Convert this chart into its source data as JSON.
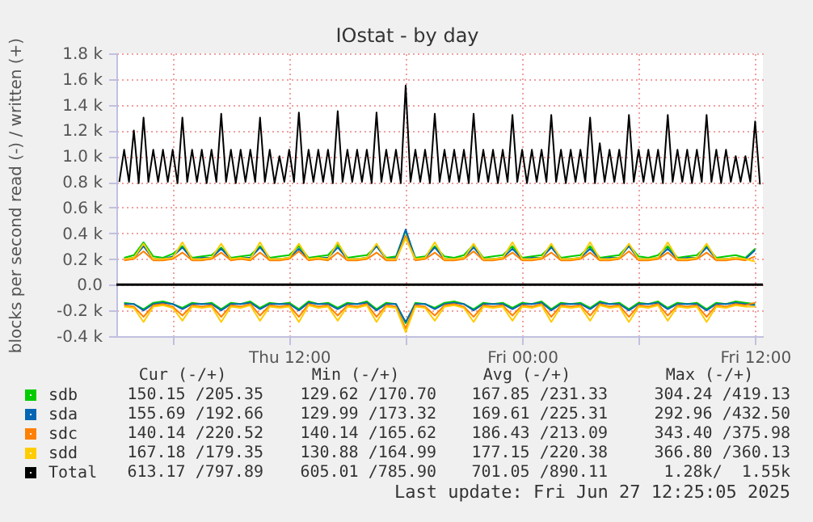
{
  "chart_data": {
    "type": "line",
    "title": "IOstat - by day",
    "ylabel": "blocks per second read (-) / written (+)",
    "annotations": [
      "Cur (-/+)",
      "Min (-/+)",
      "Avg (-/+)",
      "Max (-/+)",
      "150.15 /205.35",
      "129.62 /170.70",
      "167.85 /231.33",
      "304.24 /419.13",
      "155.69 /192.66",
      "129.99 /173.32",
      "169.61 /225.31",
      "292.96 /432.50",
      "140.14 /220.52",
      "140.14 /165.62",
      "186.43 /213.09",
      "343.40 /375.98",
      "167.18 /179.35",
      "130.88 /164.99",
      "177.15 /220.38",
      "366.80 /360.13",
      "613.17 /797.89",
      "605.01 /785.90",
      "701.05 /890.11",
      "1.28k/  1.55k",
      "Last update: Fri Jun 27 12:25:05 2025"
    ],
    "x": [
      "2025-06-26T03:30",
      "2025-06-26T04:00",
      "2025-06-26T04:30",
      "2025-06-26T05:00",
      "2025-06-26T05:30",
      "2025-06-26T06:00",
      "2025-06-26T06:30",
      "2025-06-26T07:00",
      "2025-06-26T07:30",
      "2025-06-26T08:00",
      "2025-06-26T08:30",
      "2025-06-26T09:00",
      "2025-06-26T09:30",
      "2025-06-26T10:00",
      "2025-06-26T10:30",
      "2025-06-26T11:00",
      "2025-06-26T11:30",
      "2025-06-26T12:00",
      "2025-06-26T12:30",
      "2025-06-26T13:00",
      "2025-06-26T13:30",
      "2025-06-26T14:00",
      "2025-06-26T14:30",
      "2025-06-26T15:00",
      "2025-06-26T15:30",
      "2025-06-26T16:00",
      "2025-06-26T16:30",
      "2025-06-26T17:00",
      "2025-06-26T17:30",
      "2025-06-26T18:00",
      "2025-06-26T18:30",
      "2025-06-26T19:00",
      "2025-06-26T19:30",
      "2025-06-26T20:00",
      "2025-06-26T20:30",
      "2025-06-26T21:00",
      "2025-06-26T21:30",
      "2025-06-26T22:00",
      "2025-06-26T22:30",
      "2025-06-26T23:00",
      "2025-06-26T23:30",
      "2025-06-27T00:00",
      "2025-06-27T00:30",
      "2025-06-27T01:00",
      "2025-06-27T01:30",
      "2025-06-27T02:00",
      "2025-06-27T02:30",
      "2025-06-27T03:00",
      "2025-06-27T03:30",
      "2025-06-27T04:00",
      "2025-06-27T04:30",
      "2025-06-27T05:00",
      "2025-06-27T05:30",
      "2025-06-27T06:00",
      "2025-06-27T06:30",
      "2025-06-27T07:00",
      "2025-06-27T07:30",
      "2025-06-27T08:00",
      "2025-06-27T08:30",
      "2025-06-27T09:00",
      "2025-06-27T09:30",
      "2025-06-27T10:00",
      "2025-06-27T10:30",
      "2025-06-27T11:00",
      "2025-06-27T11:30",
      "2025-06-27T12:00"
    ],
    "xlim": [
      "2025-06-26T03:06",
      "2025-06-27T12:24"
    ],
    "xticks": [
      {
        "value": "2025-06-26T06:00",
        "label": null
      },
      {
        "value": "2025-06-26T12:00",
        "label": "Thu 12:00"
      },
      {
        "value": "2025-06-26T18:00",
        "label": null
      },
      {
        "value": "2025-06-27T00:00",
        "label": "Fri 00:00"
      },
      {
        "value": "2025-06-27T06:00",
        "label": null
      },
      {
        "value": "2025-06-27T12:00",
        "label": "Fri 12:00"
      }
    ],
    "ylim": [
      -400,
      1800
    ],
    "yticks": [
      {
        "value": -400,
        "label": "-0.4 k"
      },
      {
        "value": -200,
        "label": "-0.2 k"
      },
      {
        "value": 0,
        "label": "0.0"
      },
      {
        "value": 200,
        "label": "0.2 k"
      },
      {
        "value": 400,
        "label": "0.4 k"
      },
      {
        "value": 600,
        "label": "0.6 k"
      },
      {
        "value": 800,
        "label": "0.8 k"
      },
      {
        "value": 1000,
        "label": "1.0 k"
      },
      {
        "value": 1200,
        "label": "1.2 k"
      },
      {
        "value": 1400,
        "label": "1.4 k"
      },
      {
        "value": 1600,
        "label": "1.6 k"
      },
      {
        "value": 1800,
        "label": "1.8 k"
      }
    ],
    "grid": true,
    "legend": "bottom left",
    "ref_lines": [
      {
        "axis": "y",
        "value": 0,
        "color": "#000000"
      }
    ],
    "series": [
      {
        "name": "sdb",
        "color": "#00cc00",
        "values": [
          210,
          230,
          330,
          220,
          210,
          240,
          300,
          210,
          220,
          230,
          290,
          210,
          220,
          230,
          300,
          210,
          220,
          230,
          300,
          210,
          220,
          230,
          310,
          210,
          220,
          230,
          300,
          210,
          220,
          420,
          210,
          220,
          300,
          220,
          210,
          230,
          310,
          210,
          220,
          230,
          300,
          210,
          220,
          230,
          300,
          210,
          220,
          230,
          300,
          210,
          220,
          230,
          310,
          220,
          210,
          230,
          300,
          210,
          220,
          230,
          300,
          210,
          220,
          230,
          210,
          280
        ]
      },
      {
        "color": "#00cc00",
        "values": [
          -140,
          -150,
          -190,
          -140,
          -130,
          -150,
          -180,
          -140,
          -150,
          -140,
          -190,
          -140,
          -150,
          -130,
          -180,
          -140,
          -150,
          -140,
          -190,
          -130,
          -150,
          -140,
          -180,
          -140,
          -150,
          -130,
          -190,
          -140,
          -150,
          -300,
          -140,
          -150,
          -180,
          -140,
          -130,
          -150,
          -190,
          -140,
          -150,
          -140,
          -180,
          -140,
          -150,
          -130,
          -190,
          -140,
          -150,
          -140,
          -180,
          -130,
          -150,
          -140,
          -190,
          -140,
          -150,
          -130,
          -180,
          -140,
          -150,
          -140,
          -190,
          -140,
          -150,
          -130,
          -140,
          -150
        ]
      },
      {
        "name": "sda",
        "color": "#0066b3",
        "values": [
          200,
          210,
          300,
          200,
          200,
          220,
          290,
          200,
          210,
          210,
          280,
          200,
          210,
          210,
          290,
          200,
          200,
          210,
          280,
          200,
          210,
          210,
          290,
          200,
          200,
          210,
          300,
          200,
          210,
          430,
          200,
          210,
          290,
          200,
          200,
          210,
          290,
          200,
          200,
          210,
          280,
          200,
          210,
          210,
          290,
          200,
          200,
          210,
          280,
          200,
          210,
          210,
          300,
          200,
          200,
          210,
          280,
          200,
          210,
          210,
          290,
          200,
          200,
          210,
          200,
          270
        ]
      },
      {
        "color": "#0066b3",
        "values": [
          -150,
          -150,
          -200,
          -150,
          -140,
          -150,
          -190,
          -150,
          -150,
          -150,
          -200,
          -150,
          -150,
          -140,
          -190,
          -150,
          -150,
          -150,
          -200,
          -140,
          -150,
          -150,
          -190,
          -150,
          -150,
          -140,
          -200,
          -150,
          -150,
          -290,
          -150,
          -150,
          -190,
          -150,
          -140,
          -150,
          -200,
          -150,
          -150,
          -150,
          -190,
          -150,
          -150,
          -140,
          -200,
          -150,
          -150,
          -150,
          -190,
          -140,
          -150,
          -150,
          -200,
          -150,
          -150,
          -140,
          -190,
          -150,
          -150,
          -150,
          -200,
          -150,
          -150,
          -140,
          -150,
          -160
        ]
      },
      {
        "name": "sdc",
        "color": "#ff8000",
        "values": [
          190,
          200,
          260,
          190,
          190,
          200,
          250,
          190,
          190,
          200,
          250,
          190,
          200,
          190,
          250,
          190,
          190,
          200,
          260,
          190,
          200,
          190,
          250,
          190,
          190,
          200,
          250,
          190,
          190,
          380,
          190,
          200,
          250,
          190,
          190,
          200,
          260,
          190,
          190,
          200,
          250,
          190,
          190,
          200,
          250,
          190,
          190,
          200,
          250,
          190,
          190,
          200,
          260,
          190,
          190,
          200,
          250,
          190,
          190,
          200,
          250,
          190,
          190,
          200,
          190,
          220
        ]
      },
      {
        "color": "#ff8000",
        "values": [
          -160,
          -170,
          -250,
          -160,
          -150,
          -170,
          -240,
          -160,
          -170,
          -160,
          -250,
          -160,
          -170,
          -150,
          -240,
          -160,
          -170,
          -160,
          -250,
          -150,
          -170,
          -160,
          -240,
          -160,
          -170,
          -150,
          -250,
          -160,
          -170,
          -340,
          -160,
          -170,
          -240,
          -160,
          -150,
          -170,
          -250,
          -160,
          -170,
          -160,
          -240,
          -160,
          -170,
          -150,
          -250,
          -160,
          -170,
          -160,
          -240,
          -150,
          -170,
          -160,
          -250,
          -160,
          -170,
          -150,
          -240,
          -160,
          -170,
          -160,
          -250,
          -160,
          -170,
          -150,
          -160,
          -140
        ]
      },
      {
        "name": "sdd",
        "color": "#ffcc00",
        "values": [
          200,
          210,
          320,
          200,
          200,
          210,
          330,
          200,
          200,
          210,
          320,
          200,
          210,
          200,
          330,
          200,
          200,
          210,
          320,
          200,
          210,
          200,
          330,
          200,
          200,
          210,
          320,
          200,
          200,
          360,
          200,
          210,
          330,
          200,
          200,
          210,
          320,
          200,
          200,
          210,
          330,
          200,
          200,
          210,
          320,
          200,
          200,
          210,
          330,
          200,
          200,
          210,
          320,
          200,
          200,
          210,
          330,
          200,
          200,
          210,
          320,
          200,
          200,
          210,
          200,
          180
        ]
      },
      {
        "color": "#ffcc00",
        "values": [
          -170,
          -180,
          -290,
          -170,
          -160,
          -180,
          -280,
          -170,
          -180,
          -170,
          -290,
          -170,
          -180,
          -160,
          -280,
          -170,
          -180,
          -170,
          -290,
          -160,
          -180,
          -170,
          -280,
          -170,
          -180,
          -160,
          -290,
          -170,
          -180,
          -370,
          -170,
          -180,
          -280,
          -170,
          -160,
          -180,
          -290,
          -170,
          -180,
          -170,
          -280,
          -170,
          -180,
          -160,
          -290,
          -170,
          -180,
          -170,
          -280,
          -160,
          -180,
          -170,
          -290,
          -170,
          -180,
          -160,
          -280,
          -170,
          -180,
          -170,
          -290,
          -170,
          -180,
          -160,
          -170,
          -170
        ]
      },
      {
        "name": "Total",
        "color": "#000000",
        "x": [
          "2025-06-26T03:15",
          "2025-06-26T03:30",
          "2025-06-26T03:45",
          "2025-06-26T04:00",
          "2025-06-26T04:15",
          "2025-06-26T04:30",
          "2025-06-26T04:45",
          "2025-06-26T05:00",
          "2025-06-26T05:15",
          "2025-06-26T05:30",
          "2025-06-26T05:45",
          "2025-06-26T06:00",
          "2025-06-26T06:15",
          "2025-06-26T06:30",
          "2025-06-26T06:45",
          "2025-06-26T07:00",
          "2025-06-26T07:15",
          "2025-06-26T07:30",
          "2025-06-26T07:45",
          "2025-06-26T08:00",
          "2025-06-26T08:15",
          "2025-06-26T08:30",
          "2025-06-26T08:45",
          "2025-06-26T09:00",
          "2025-06-26T09:15",
          "2025-06-26T09:30",
          "2025-06-26T09:45",
          "2025-06-26T10:00",
          "2025-06-26T10:15",
          "2025-06-26T10:30",
          "2025-06-26T10:45",
          "2025-06-26T11:00",
          "2025-06-26T11:15",
          "2025-06-26T11:30",
          "2025-06-26T11:45",
          "2025-06-26T12:00",
          "2025-06-26T12:15",
          "2025-06-26T12:30",
          "2025-06-26T12:45",
          "2025-06-26T13:00",
          "2025-06-26T13:15",
          "2025-06-26T13:30",
          "2025-06-26T13:45",
          "2025-06-26T14:00",
          "2025-06-26T14:15",
          "2025-06-26T14:30",
          "2025-06-26T14:45",
          "2025-06-26T15:00",
          "2025-06-26T15:15",
          "2025-06-26T15:30",
          "2025-06-26T15:45",
          "2025-06-26T16:00",
          "2025-06-26T16:15",
          "2025-06-26T16:30",
          "2025-06-26T16:45",
          "2025-06-26T17:00",
          "2025-06-26T17:15",
          "2025-06-26T17:30",
          "2025-06-26T17:45",
          "2025-06-26T18:00",
          "2025-06-26T18:15",
          "2025-06-26T18:30",
          "2025-06-26T18:45",
          "2025-06-26T19:00",
          "2025-06-26T19:15",
          "2025-06-26T19:30",
          "2025-06-26T19:45",
          "2025-06-26T20:00",
          "2025-06-26T20:15",
          "2025-06-26T20:30",
          "2025-06-26T20:45",
          "2025-06-26T21:00",
          "2025-06-26T21:15",
          "2025-06-26T21:30",
          "2025-06-26T21:45",
          "2025-06-26T22:00",
          "2025-06-26T22:15",
          "2025-06-26T22:30",
          "2025-06-26T22:45",
          "2025-06-26T23:00",
          "2025-06-26T23:15",
          "2025-06-26T23:30",
          "2025-06-26T23:45",
          "2025-06-27T00:00",
          "2025-06-27T00:15",
          "2025-06-27T00:30",
          "2025-06-27T00:45",
          "2025-06-27T01:00",
          "2025-06-27T01:15",
          "2025-06-27T01:30",
          "2025-06-27T01:45",
          "2025-06-27T02:00",
          "2025-06-27T02:15",
          "2025-06-27T02:30",
          "2025-06-27T02:45",
          "2025-06-27T03:00",
          "2025-06-27T03:15",
          "2025-06-27T03:30",
          "2025-06-27T03:45",
          "2025-06-27T04:00",
          "2025-06-27T04:15",
          "2025-06-27T04:30",
          "2025-06-27T04:45",
          "2025-06-27T05:00",
          "2025-06-27T05:15",
          "2025-06-27T05:30",
          "2025-06-27T05:45",
          "2025-06-27T06:00",
          "2025-06-27T06:15",
          "2025-06-27T06:30",
          "2025-06-27T06:45",
          "2025-06-27T07:00",
          "2025-06-27T07:15",
          "2025-06-27T07:30",
          "2025-06-27T07:45",
          "2025-06-27T08:00",
          "2025-06-27T08:15",
          "2025-06-27T08:30",
          "2025-06-27T08:45",
          "2025-06-27T09:00",
          "2025-06-27T09:15",
          "2025-06-27T09:30",
          "2025-06-27T09:45",
          "2025-06-27T10:00",
          "2025-06-27T10:15",
          "2025-06-27T10:30",
          "2025-06-27T10:45",
          "2025-06-27T11:00",
          "2025-06-27T11:15",
          "2025-06-27T11:30",
          "2025-06-27T11:45",
          "2025-06-27T12:00",
          "2025-06-27T12:15"
        ],
        "values": [
          800,
          1050,
          800,
          1200,
          790,
          1300,
          800,
          1050,
          800,
          1050,
          800,
          1050,
          790,
          1300,
          800,
          1050,
          800,
          1050,
          790,
          1050,
          800,
          1330,
          800,
          1050,
          790,
          1050,
          800,
          1050,
          800,
          1300,
          800,
          1050,
          790,
          1000,
          800,
          1050,
          800,
          1340,
          790,
          1050,
          800,
          1050,
          800,
          1050,
          790,
          1350,
          800,
          1050,
          800,
          1050,
          800,
          1050,
          790,
          1340,
          800,
          1050,
          800,
          1050,
          790,
          1550,
          800,
          1050,
          800,
          1050,
          790,
          1330,
          800,
          1050,
          800,
          1050,
          800,
          1050,
          790,
          1330,
          800,
          1050,
          800,
          1050,
          790,
          1050,
          800,
          1320,
          800,
          1050,
          790,
          1050,
          800,
          1050,
          800,
          1320,
          800,
          1050,
          790,
          1050,
          800,
          1050,
          800,
          1300,
          790,
          1100,
          800,
          1050,
          800,
          1050,
          790,
          1320,
          800,
          1050,
          800,
          1050,
          800,
          1050,
          790,
          1320,
          800,
          1050,
          800,
          1050,
          790,
          1050,
          800,
          1320,
          800,
          1050,
          790,
          1050,
          800,
          1000,
          800,
          1000,
          800,
          1270,
          780
        ]
      }
    ]
  }
}
